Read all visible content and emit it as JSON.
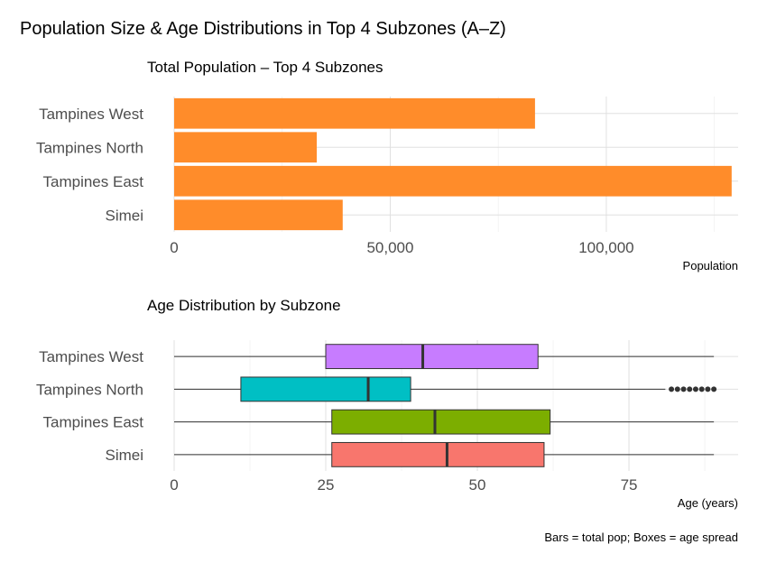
{
  "figure": {
    "title": "Population Size & Age Distributions in Top 4 Subzones (A–Z)",
    "caption": "Bars = total pop; Boxes = age spread"
  },
  "chart_data": [
    {
      "type": "bar",
      "orientation": "horizontal",
      "title": "Total Population – Top 4 Subzones",
      "xlabel": "Population",
      "ylabel": "",
      "categories": [
        "Tampines West",
        "Tampines North",
        "Tampines East",
        "Simei"
      ],
      "values": [
        83500,
        33000,
        129000,
        39000
      ],
      "xlim": [
        0,
        130500
      ],
      "xticks": [
        0,
        50000,
        100000
      ],
      "xtick_labels": [
        "0",
        "50,000",
        "100,000"
      ],
      "bar_color": "#FF8C2A",
      "grid": true
    },
    {
      "type": "box",
      "orientation": "horizontal",
      "title": "Age Distribution by Subzone",
      "xlabel": "Age (years)",
      "ylabel": "",
      "categories": [
        "Tampines West",
        "Tampines North",
        "Tampines East",
        "Simei"
      ],
      "boxes": [
        {
          "category": "Tampines West",
          "whisker_low": 0,
          "q1": 25,
          "median": 41,
          "q3": 60,
          "whisker_high": 89,
          "outliers": [],
          "color": "#C77CFF"
        },
        {
          "category": "Tampines North",
          "whisker_low": 0,
          "q1": 11,
          "median": 32,
          "q3": 39,
          "whisker_high": 81,
          "outliers": [
            82,
            83,
            84,
            85,
            86,
            87,
            88,
            89
          ],
          "color": "#00BFC4"
        },
        {
          "category": "Tampines East",
          "whisker_low": 0,
          "q1": 26,
          "median": 43,
          "q3": 62,
          "whisker_high": 89,
          "outliers": [],
          "color": "#7CAE00"
        },
        {
          "category": "Simei",
          "whisker_low": 0,
          "q1": 26,
          "median": 45,
          "q3": 61,
          "whisker_high": 89,
          "outliers": [],
          "color": "#F8766D"
        }
      ],
      "xlim": [
        0,
        93
      ],
      "xticks": [
        0,
        25,
        50,
        75
      ],
      "xtick_labels": [
        "0",
        "25",
        "50",
        "75"
      ],
      "grid": true
    }
  ]
}
